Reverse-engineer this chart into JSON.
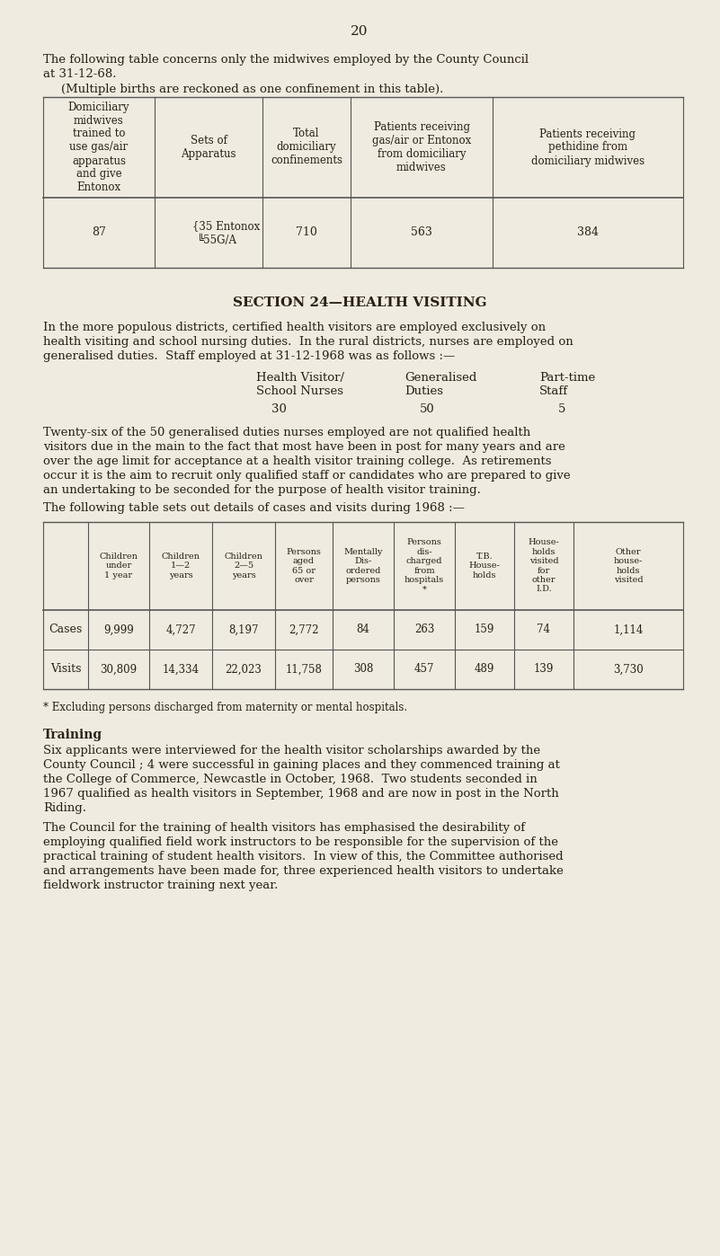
{
  "bg_color": "#f0ebe0",
  "text_color": "#2a2015",
  "page_number": "20",
  "intro_line1": "The following table concerns only the midwives employed by the County Council",
  "intro_line2": "at 31-12-68.",
  "sub_intro": "(Multiple births are reckoned as one confinement in this table).",
  "table1_headers": [
    "Domiciliary\nmidwives\ntrained to\nuse gas/air\napparatus\nand give\nEntonox",
    "Sets of\nApparatus",
    "Total\ndomiciliary\nconfinements",
    "Patients receiving\ngas/air or Entonox\nfrom domiciliary\nmidwives",
    "Patients receiving\npethidine from\ndomiciliary midwives"
  ],
  "section_title": "SECTION 24—HEALTH VISITING",
  "para1_lines": [
    "In the more populous districts, certified health visitors are employed exclusively on",
    "health visiting and school nursing duties.  In the rural districts, nurses are employed on",
    "generalised duties.  Staff employed at 31-12-1968 was as follows :—"
  ],
  "staff_row1": [
    "Health Visitor/",
    "Generalised",
    "Part-time"
  ],
  "staff_row2": [
    "School Nurses",
    "Duties",
    "Staff"
  ],
  "staff_vals": [
    "30",
    "50",
    "5"
  ],
  "para2_lines": [
    "Twenty-six of the 50 generalised duties nurses employed are not qualified health",
    "visitors due in the main to the fact that most have been in post for many years and are",
    "over the age limit for acceptance at a health visitor training college.  As retirements",
    "occur it is the aim to recruit only qualified staff or candidates who are prepared to give",
    "an undertaking to be seconded for the purpose of health visitor training."
  ],
  "para3": "The following table sets out details of cases and visits during 1968 :—",
  "table2_headers": [
    "Children\nunder\n1 year",
    "Children\n1—2\nyears",
    "Children\n2—5\nyears",
    "Persons\naged\n65 or\nover",
    "Mentally\nDis-\nordered\npersons",
    "Persons\ndis-\ncharged\nfrom\nhospitals\n*",
    "T.B.\nHouse-\nholds",
    "House-\nholds\nvisited\nfor\nother\nI.D.",
    "Other\nhouse-\nholds\nvisited"
  ],
  "table2_row_labels": [
    "Cases",
    "Visits"
  ],
  "table2_data_str": [
    [
      "9,999",
      "4,727",
      "8,197",
      "2,772",
      "84",
      "263",
      "159",
      "74",
      "1,114"
    ],
    [
      "30,809",
      "14,334",
      "22,023",
      "11,758",
      "308",
      "457",
      "489",
      "139",
      "3,730"
    ]
  ],
  "footnote": "* Excluding persons discharged from maternity or mental hospitals.",
  "training_title": "Training",
  "training_para1_lines": [
    "Six applicants were interviewed for the health visitor scholarships awarded by the",
    "County Council ; 4 were successful in gaining places and they commenced training at",
    "the College of Commerce, Newcastle in October, 1968.  Two students seconded in",
    "1967 qualified as health visitors in September, 1968 and are now in post in the North",
    "Riding."
  ],
  "training_para2_lines": [
    "The Council for the training of health visitors has emphasised the desirability of",
    "employing qualified field work instructors to be responsible for the supervision of the",
    "practical training of student health visitors.  In view of this, the Committee authorised",
    "and arrangements have been made for, three experienced health visitors to undertake",
    "fieldwork instructor training next year."
  ]
}
